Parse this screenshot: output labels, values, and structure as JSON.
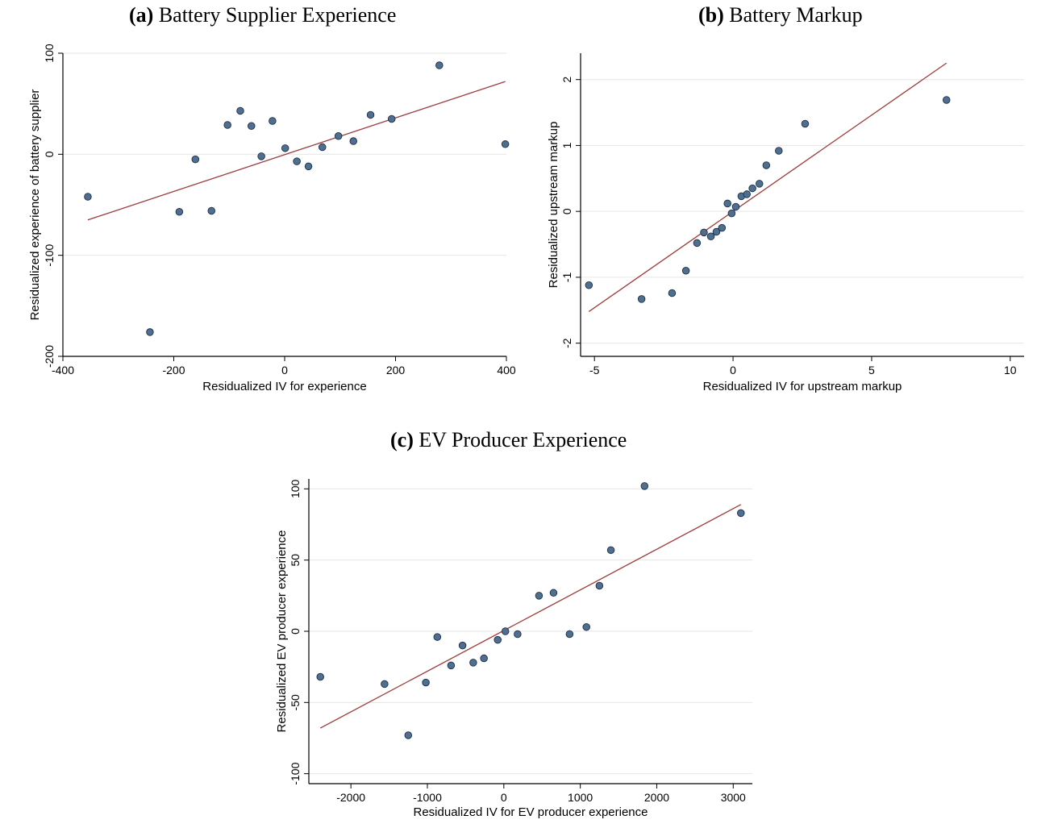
{
  "panels": [
    {
      "tag": "(a)",
      "title": "Battery Supplier Experience"
    },
    {
      "tag": "(b)",
      "title": "Battery Markup"
    },
    {
      "tag": "(c)",
      "title": "EV Producer Experience"
    }
  ],
  "style": {
    "point_color": "#4f6f91",
    "point_edge": "#1c2e45",
    "line_color": "#9e3b3b",
    "grid_color": "#e6e6e6"
  },
  "chart_data": [
    {
      "type": "scatter",
      "title": "Battery Supplier Experience",
      "xlabel": "Residualized IV for experience",
      "ylabel": "Residualized experience of battery supplier",
      "xlim": [
        -400,
        400
      ],
      "ylim": [
        -200,
        100
      ],
      "xticks": [
        -400,
        -200,
        0,
        200,
        400
      ],
      "yticks": [
        -200,
        -100,
        0,
        100
      ],
      "grid": true,
      "points": [
        {
          "x": -355,
          "y": -42
        },
        {
          "x": -243,
          "y": -176
        },
        {
          "x": -190,
          "y": -57
        },
        {
          "x": -161,
          "y": -5
        },
        {
          "x": -132,
          "y": -56
        },
        {
          "x": -103,
          "y": 29
        },
        {
          "x": -80,
          "y": 43
        },
        {
          "x": -60,
          "y": 28
        },
        {
          "x": -42,
          "y": -2
        },
        {
          "x": -22,
          "y": 33
        },
        {
          "x": 1,
          "y": 6
        },
        {
          "x": 22,
          "y": -7
        },
        {
          "x": 43,
          "y": -12
        },
        {
          "x": 68,
          "y": 7
        },
        {
          "x": 97,
          "y": 18
        },
        {
          "x": 124,
          "y": 13
        },
        {
          "x": 155,
          "y": 39
        },
        {
          "x": 193,
          "y": 35
        },
        {
          "x": 279,
          "y": 88
        },
        {
          "x": 398,
          "y": 10
        }
      ],
      "fit_line": [
        {
          "x": -355,
          "y": -65
        },
        {
          "x": 398,
          "y": 72
        }
      ]
    },
    {
      "type": "scatter",
      "title": "Battery Markup",
      "xlabel": "Residualized IV for upstream markup",
      "ylabel": "Residualized upstream markup",
      "xlim": [
        -5.5,
        10.5
      ],
      "ylim": [
        -2.2,
        2.4
      ],
      "xticks": [
        -5,
        0,
        5,
        10
      ],
      "yticks": [
        -2,
        -1,
        0,
        1,
        2
      ],
      "grid": true,
      "points": [
        {
          "x": -5.2,
          "y": -1.12
        },
        {
          "x": -3.3,
          "y": -1.33
        },
        {
          "x": -2.2,
          "y": -1.24
        },
        {
          "x": -1.7,
          "y": -0.9
        },
        {
          "x": -1.3,
          "y": -0.48
        },
        {
          "x": -1.05,
          "y": -0.32
        },
        {
          "x": -0.8,
          "y": -0.38
        },
        {
          "x": -0.6,
          "y": -0.31
        },
        {
          "x": -0.4,
          "y": -0.25
        },
        {
          "x": -0.2,
          "y": 0.12
        },
        {
          "x": -0.05,
          "y": -0.03
        },
        {
          "x": 0.1,
          "y": 0.07
        },
        {
          "x": 0.3,
          "y": 0.23
        },
        {
          "x": 0.5,
          "y": 0.26
        },
        {
          "x": 0.7,
          "y": 0.35
        },
        {
          "x": 0.95,
          "y": 0.42
        },
        {
          "x": 1.2,
          "y": 0.7
        },
        {
          "x": 1.65,
          "y": 0.92
        },
        {
          "x": 2.6,
          "y": 1.33
        },
        {
          "x": 7.7,
          "y": 1.69
        }
      ],
      "fit_line": [
        {
          "x": -5.2,
          "y": -1.52
        },
        {
          "x": 7.7,
          "y": 2.25
        }
      ]
    },
    {
      "type": "scatter",
      "title": "EV Producer Experience",
      "xlabel": "Residualized IV for EV producer experience",
      "ylabel": "Residualized EV producer experience",
      "xlim": [
        -2550,
        3250
      ],
      "ylim": [
        -107,
        107
      ],
      "xticks": [
        -2000,
        -1000,
        0,
        1000,
        2000,
        3000
      ],
      "yticks": [
        -100,
        -50,
        0,
        50,
        100
      ],
      "grid": true,
      "points": [
        {
          "x": -2400,
          "y": -32
        },
        {
          "x": -1560,
          "y": -37
        },
        {
          "x": -1250,
          "y": -73
        },
        {
          "x": -1020,
          "y": -36
        },
        {
          "x": -870,
          "y": -4
        },
        {
          "x": -690,
          "y": -24
        },
        {
          "x": -540,
          "y": -10
        },
        {
          "x": -400,
          "y": -22
        },
        {
          "x": -260,
          "y": -19
        },
        {
          "x": -80,
          "y": -6
        },
        {
          "x": 20,
          "y": 0
        },
        {
          "x": 180,
          "y": -2
        },
        {
          "x": 460,
          "y": 25
        },
        {
          "x": 650,
          "y": 27
        },
        {
          "x": 860,
          "y": -2
        },
        {
          "x": 1080,
          "y": 3
        },
        {
          "x": 1250,
          "y": 32
        },
        {
          "x": 1400,
          "y": 57
        },
        {
          "x": 1840,
          "y": 102
        },
        {
          "x": 3100,
          "y": 83
        }
      ],
      "fit_line": [
        {
          "x": -2400,
          "y": -68
        },
        {
          "x": 3100,
          "y": 89
        }
      ]
    }
  ]
}
